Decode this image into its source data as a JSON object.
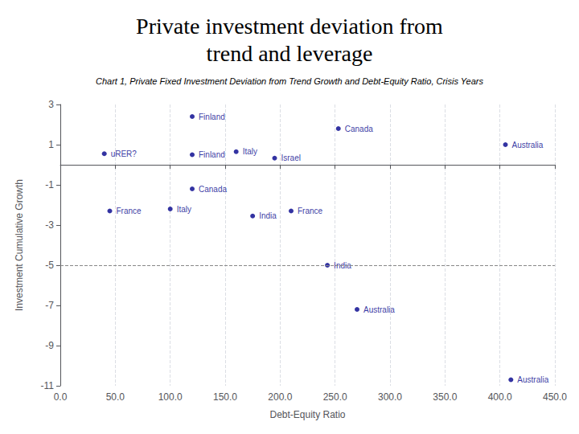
{
  "chart_data": {
    "type": "scatter",
    "title": "Private investment deviation from\ntrend and leverage",
    "subtitle": "Chart 1, Private Fixed Investment Deviation from Trend Growth and Debt-Equity Ratio, Crisis Years",
    "xlabel": "Debt-Equity Ratio",
    "ylabel": "Investment Cumulative Growth",
    "x": [
      120,
      253,
      405,
      40,
      160,
      120,
      195,
      120,
      100,
      45,
      175,
      210,
      243,
      270,
      410
    ],
    "values": [
      2.4,
      1.8,
      1.0,
      0.55,
      0.65,
      0.5,
      0.33,
      -1.2,
      -2.2,
      -2.3,
      -2.55,
      -2.3,
      -5.0,
      -7.2,
      -10.7
    ],
    "labels": [
      "Finland",
      "Canada",
      "Australia",
      "uRER?",
      "Italy",
      "Finland",
      "Israel",
      "Canada",
      "Italy",
      "France",
      "India",
      "France",
      "India",
      "Australia",
      "Australia"
    ],
    "color": "#00008B",
    "xlim": [
      0,
      450
    ],
    "ylim": [
      -11,
      3
    ],
    "xticks": [
      {
        "value": 0,
        "label": "0.0"
      },
      {
        "value": 50,
        "label": "50.0"
      },
      {
        "value": 100,
        "label": "100.0"
      },
      {
        "value": 150,
        "label": "150.0"
      },
      {
        "value": 200,
        "label": "200.0"
      },
      {
        "value": 250,
        "label": "250.0"
      },
      {
        "value": 300,
        "label": "300.0"
      },
      {
        "value": 350,
        "label": "350.0"
      },
      {
        "value": 400,
        "label": "400.0"
      },
      {
        "value": 450,
        "label": "450.0"
      }
    ],
    "yticks": [
      3,
      1,
      -1,
      -3,
      -5,
      -7,
      -9,
      -11
    ],
    "hline": -5,
    "grid": "x"
  }
}
